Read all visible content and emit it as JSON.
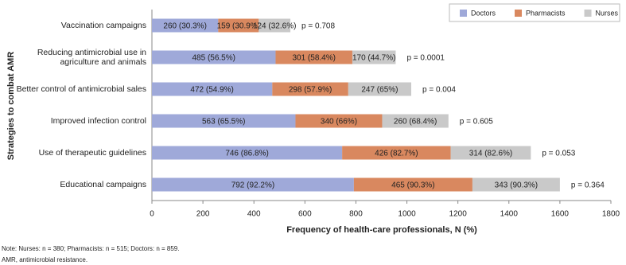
{
  "chart_data": {
    "type": "bar",
    "orientation": "horizontal",
    "stacked": true,
    "categories": [
      "Vaccination campaigns",
      "Reducing antimicrobial use in\nagriculture and animals",
      "Better control of antimicrobial sales",
      "Improved infection control",
      "Use of therapeutic guidelines",
      "Educational campaigns"
    ],
    "series": [
      {
        "name": "Doctors",
        "color": "#9fa9d9",
        "values": [
          260,
          485,
          472,
          563,
          746,
          792
        ],
        "value_labels": [
          "260 (30.3%)",
          "485 (56.5%)",
          "472 (54.9%)",
          "563 (65.5%)",
          "746 (86.8%)",
          "792 (92.2%)"
        ]
      },
      {
        "name": "Pharmacists",
        "color": "#d9885f",
        "values": [
          159,
          301,
          298,
          340,
          426,
          465
        ],
        "value_labels": [
          "159 (30.9%)",
          "301 (58.4%)",
          "298 (57.9%)",
          "340 (66%)",
          "426 (82.7%)",
          "465 (90.3%)"
        ]
      },
      {
        "name": "Nurses",
        "color": "#c9c9c9",
        "values": [
          124,
          170,
          247,
          260,
          314,
          343
        ],
        "value_labels": [
          "124 (32.6%)",
          "170 (44.7%)",
          "247 (65%)",
          "260 (68.4%)",
          "314 (82.6%)",
          "343 (90.3%)"
        ]
      }
    ],
    "annotations": [
      "p = 0.708",
      "p = 0.0001",
      "p = 0.004",
      "p = 0.605",
      "p = 0.053",
      "p = 0.364"
    ],
    "xlabel": "Frequency of health-care professionals, N (%)",
    "ylabel": "Strategies to combat AMR",
    "xlim": [
      0,
      1800
    ],
    "xticks": [
      0,
      200,
      400,
      600,
      800,
      1000,
      1200,
      1400,
      1600,
      1800
    ],
    "grid": false,
    "legend": "upper right",
    "notes": [
      "Note: Nurses: n = 380; Pharmacists: n = 515; Doctors: n = 859.",
      "AMR, antimicrobial resistance."
    ]
  }
}
